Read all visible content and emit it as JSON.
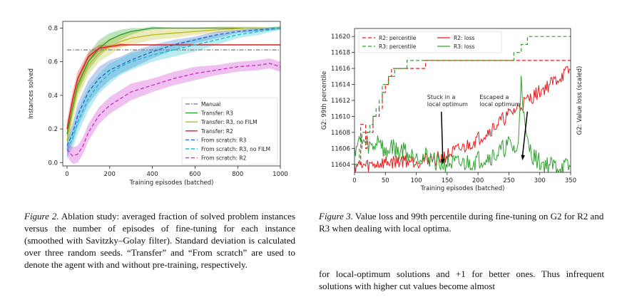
{
  "colors": {
    "manual": "#888888",
    "transfer_r3": "#2ca02c",
    "transfer_r3_nofilm": "#bcbd22",
    "transfer_r2": "#e41a1c",
    "scratch_r3": "#3366cc",
    "scratch_r3_nofilm": "#17becf",
    "scratch_r2": "#cc33cc",
    "r2": "#e41a1c",
    "r3": "#2ca02c"
  },
  "chart_data": [
    {
      "type": "line",
      "xlabel": "Training episodes (batched)",
      "ylabel": "Instances solved",
      "xlim": [
        -20,
        1000
      ],
      "ylim": [
        -0.02,
        0.84
      ],
      "xticks": [
        "0",
        "200",
        "400",
        "600",
        "800",
        "1000"
      ],
      "yticks": [
        "0.0",
        "0.2",
        "0.4",
        "0.6",
        "0.8"
      ],
      "legend_position": "lower-right",
      "series": [
        {
          "name": "Manual",
          "key": "manual",
          "style": "dashdot",
          "x": [
            0,
            1000
          ],
          "y": [
            0.67,
            0.67
          ]
        },
        {
          "name": "Transfer: R3",
          "key": "transfer_r3",
          "style": "solid",
          "x": [
            0,
            25,
            50,
            100,
            150,
            200,
            250,
            300,
            350,
            400,
            500,
            700,
            1000
          ],
          "y": [
            0.17,
            0.32,
            0.46,
            0.6,
            0.68,
            0.73,
            0.76,
            0.78,
            0.79,
            0.8,
            0.8,
            0.8,
            0.8
          ],
          "band": [
            0.05,
            0.05,
            0.05,
            0.05,
            0.05,
            0.04,
            0.03,
            0.02,
            0.01,
            0.01,
            0.0,
            0.0,
            0.0
          ]
        },
        {
          "name": "Transfer: R3, no FILM",
          "key": "transfer_r3_nofilm",
          "style": "solid",
          "x": [
            0,
            25,
            50,
            100,
            150,
            200,
            250,
            300,
            400,
            500,
            600,
            700,
            850,
            1000
          ],
          "y": [
            0.13,
            0.3,
            0.44,
            0.58,
            0.65,
            0.69,
            0.72,
            0.74,
            0.76,
            0.77,
            0.78,
            0.79,
            0.8,
            0.8
          ],
          "band": [
            0.05,
            0.06,
            0.06,
            0.06,
            0.05,
            0.05,
            0.04,
            0.04,
            0.03,
            0.03,
            0.02,
            0.02,
            0.01,
            0.0
          ]
        },
        {
          "name": "Transfer: R2",
          "key": "transfer_r2",
          "style": "solid",
          "x": [
            0,
            25,
            50,
            100,
            150,
            200,
            250,
            300,
            400,
            500,
            1000
          ],
          "y": [
            0.2,
            0.37,
            0.5,
            0.63,
            0.68,
            0.69,
            0.7,
            0.7,
            0.7,
            0.7,
            0.7
          ],
          "band": [
            0.05,
            0.05,
            0.04,
            0.03,
            0.02,
            0.01,
            0.01,
            0.0,
            0.0,
            0.0,
            0.0
          ]
        },
        {
          "name": "From scratch: R3",
          "key": "scratch_r3",
          "style": "dashed",
          "x": [
            0,
            25,
            50,
            100,
            150,
            200,
            250,
            300,
            400,
            500,
            600,
            700,
            800,
            900,
            1000
          ],
          "y": [
            0.1,
            0.17,
            0.28,
            0.42,
            0.5,
            0.55,
            0.58,
            0.61,
            0.66,
            0.7,
            0.73,
            0.76,
            0.78,
            0.79,
            0.8
          ],
          "band": [
            0.05,
            0.06,
            0.07,
            0.07,
            0.07,
            0.06,
            0.05,
            0.05,
            0.04,
            0.03,
            0.02,
            0.02,
            0.01,
            0.01,
            0.01
          ]
        },
        {
          "name": "From scratch: R3, no FILM",
          "key": "scratch_r3_nofilm",
          "style": "dashed",
          "x": [
            0,
            25,
            50,
            100,
            150,
            200,
            250,
            300,
            400,
            500,
            600,
            700,
            800,
            900,
            1000
          ],
          "y": [
            0.08,
            0.14,
            0.24,
            0.38,
            0.47,
            0.53,
            0.57,
            0.6,
            0.64,
            0.67,
            0.7,
            0.73,
            0.76,
            0.78,
            0.8
          ],
          "band": [
            0.05,
            0.06,
            0.07,
            0.07,
            0.06,
            0.06,
            0.05,
            0.05,
            0.04,
            0.04,
            0.04,
            0.03,
            0.02,
            0.02,
            0.01
          ]
        },
        {
          "name": "From scratch: R2",
          "key": "scratch_r2",
          "style": "dashed",
          "x": [
            0,
            25,
            50,
            75,
            100,
            150,
            200,
            250,
            300,
            400,
            500,
            600,
            700,
            800,
            900,
            950,
            1000
          ],
          "y": [
            0.08,
            0.04,
            0.05,
            0.1,
            0.18,
            0.28,
            0.34,
            0.38,
            0.42,
            0.46,
            0.5,
            0.53,
            0.55,
            0.57,
            0.58,
            0.59,
            0.57
          ],
          "band": [
            0.04,
            0.05,
            0.05,
            0.05,
            0.05,
            0.05,
            0.05,
            0.05,
            0.05,
            0.04,
            0.04,
            0.04,
            0.03,
            0.03,
            0.03,
            0.03,
            0.03
          ]
        }
      ]
    },
    {
      "type": "line",
      "xlabel": "Training episodes (batched)",
      "ylabel": "G2: 99th percentile",
      "ylabel_right": "G2: Value loss (scaled)",
      "xlim": [
        0,
        350
      ],
      "ylim": [
        11603,
        11621
      ],
      "xticks": [
        "0",
        "50",
        "100",
        "150",
        "200",
        "250",
        "300",
        "350"
      ],
      "yticks": [
        "11604",
        "11606",
        "11608",
        "11610",
        "11612",
        "11614",
        "11616",
        "11618",
        "11620"
      ],
      "legend_position": "top",
      "annotations": [
        {
          "text": [
            "Stuck in a",
            "local optimum"
          ],
          "at_episode": 143,
          "at_value": 11604
        },
        {
          "text": [
            "Escaped a",
            "local optimum"
          ],
          "at_episode": 272,
          "at_value": 11604.5
        }
      ],
      "series": [
        {
          "name": "R2: percentile",
          "key": "r2",
          "style": "dashed",
          "x": [
            0,
            8,
            10,
            18,
            20,
            30,
            35,
            40,
            45,
            50,
            55,
            60,
            65,
            70,
            110,
            115,
            350
          ],
          "y": [
            11604,
            11604,
            11609,
            11606,
            11608,
            11610,
            11610,
            11611,
            11613,
            11614,
            11615,
            11616,
            11616,
            11616,
            11616,
            11617,
            11617
          ]
        },
        {
          "name": "R3: percentile",
          "key": "r3",
          "style": "dashed",
          "x": [
            0,
            8,
            12,
            20,
            25,
            30,
            35,
            40,
            45,
            50,
            55,
            65,
            70,
            85,
            110,
            255,
            258,
            265,
            270,
            280,
            350
          ],
          "y": [
            11604,
            11606,
            11608,
            11608,
            11609,
            11610,
            11611,
            11612,
            11614,
            11614,
            11615,
            11616,
            11616,
            11617,
            11617,
            11617,
            11618,
            11618,
            11619,
            11620,
            11620
          ]
        },
        {
          "name": "R2: loss",
          "key": "r2",
          "style": "solid",
          "x": [
            0,
            20,
            40,
            60,
            80,
            100,
            120,
            140,
            160,
            180,
            200,
            220,
            240,
            260,
            280,
            300,
            320,
            340,
            350
          ],
          "y": [
            11603.9,
            11603.8,
            11604.1,
            11604.3,
            11604.5,
            11604.4,
            11604.6,
            11604.8,
            11605.5,
            11606.2,
            11607.2,
            11608.3,
            11609.6,
            11610.8,
            11612,
            11613.1,
            11614.2,
            11615.3,
            11615.8
          ]
        },
        {
          "name": "R3: loss",
          "key": "r3",
          "style": "solid",
          "x": [
            0,
            10,
            20,
            30,
            40,
            50,
            60,
            70,
            80,
            90,
            100,
            110,
            120,
            130,
            140,
            150,
            170,
            190,
            210,
            230,
            250,
            265,
            270,
            275,
            280,
            290,
            300,
            320,
            350
          ],
          "y": [
            11606,
            11607,
            11606.5,
            11606,
            11607.5,
            11605,
            11606.5,
            11605.5,
            11606,
            11605,
            11605.5,
            11604.8,
            11605,
            11604.5,
            11604,
            11604.2,
            11604,
            11604.3,
            11604.8,
            11605.2,
            11606.5,
            11605.5,
            11615.5,
            11609,
            11606.5,
            11605,
            11604.2,
            11603.8,
            11603.6
          ]
        }
      ]
    }
  ],
  "captions": {
    "left": {
      "label": "Figure 2.",
      "text": "Ablation study: averaged fraction of solved problem instances versus the number of episodes of fine-tuning for each instance (smoothed with Savitzky–Golay filter). Standard deviation is calculated over three random seeds. “Transfer” and “From scratch” are used to denote the agent with and without pre-training, respectively."
    },
    "right": {
      "label": "Figure 3.",
      "text": "Value loss and 99th percentile during fine-tuning on G2 for R2 and R3 when dealing with local optima."
    },
    "body": "for local-optimum solutions and +1 for better ones. Thus infrequent solutions with higher cut values become almost"
  }
}
